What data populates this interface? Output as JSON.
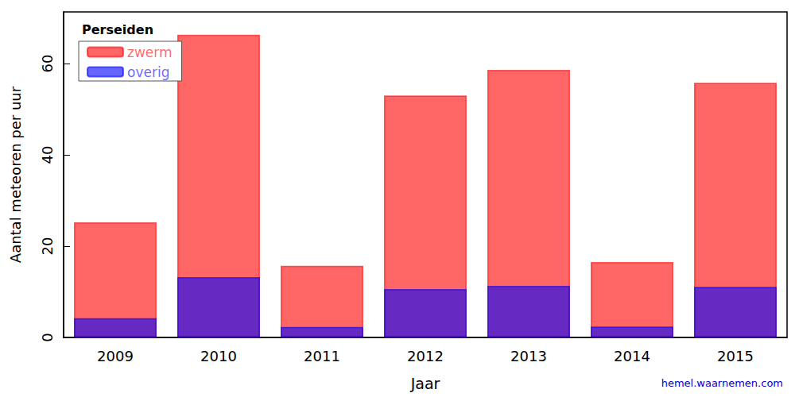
{
  "chart_data": {
    "type": "bar",
    "title": "Perseiden",
    "x_label": "Jaar",
    "y_label": "Aantal meteoren per uur",
    "categories": [
      "2009",
      "2010",
      "2011",
      "2012",
      "2013",
      "2014",
      "2015"
    ],
    "series": [
      {
        "name": "zwerm",
        "color": "#ff0000",
        "values": [
          25.2,
          66.3,
          15.7,
          53,
          58.6,
          16.5,
          55.8
        ]
      },
      {
        "name": "overig",
        "color": "#0000ff",
        "values": [
          4.2,
          13.2,
          2.3,
          10.6,
          11.3,
          2.4,
          11.1
        ]
      }
    ],
    "ylim": [
      0,
      71.3
    ],
    "yticks": [
      0,
      20,
      40,
      60
    ],
    "legend": "upper left",
    "stacked": false,
    "grid": false,
    "annotation": "hemel.waarnemen.com"
  }
}
